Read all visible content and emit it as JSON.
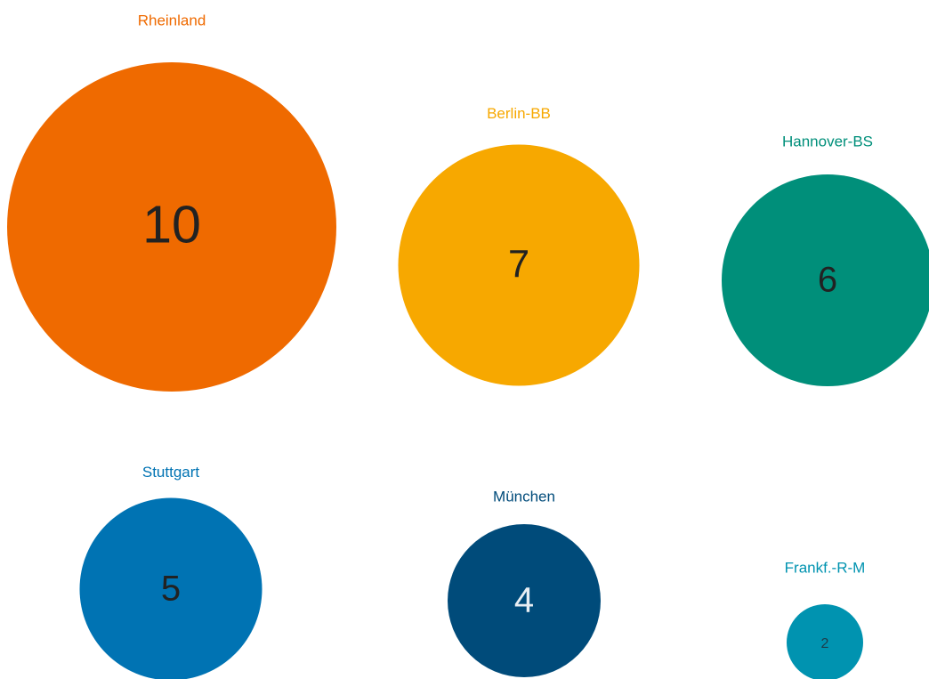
{
  "chart_data": {
    "type": "bubble",
    "categories": [
      "Rheinland",
      "Berlin-BB",
      "Hannover-BS",
      "Stuttgart",
      "München",
      "Frankf.-R-M"
    ],
    "values": [
      10,
      7,
      6,
      5,
      4,
      2
    ],
    "colors": [
      "#ef6a00",
      "#f7a800",
      "#008f7a",
      "#0073b3",
      "#004b7a",
      "#0093b0"
    ]
  }
}
